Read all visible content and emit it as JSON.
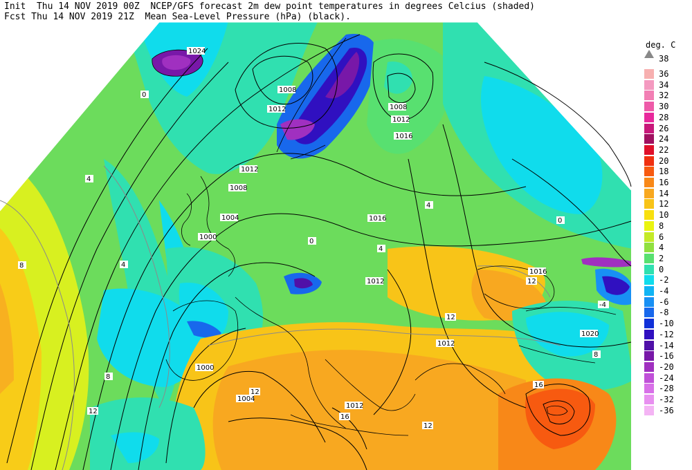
{
  "header": {
    "line1": "Init  Thu 14 NOV 2019 00Z  NCEP/GFS forecast 2m dew point temperatures in degrees Celcius (shaded)",
    "line2": "Fcst Thu 14 NOV 2019 21Z  Mean Sea-Level Pressure (hPa) (black)."
  },
  "legend": {
    "title": "deg. C",
    "top_label": "38",
    "entries": [
      {
        "label": "36",
        "color": "#f7b0b0"
      },
      {
        "label": "34",
        "color": "#f49ac0"
      },
      {
        "label": "32",
        "color": "#f27fb4"
      },
      {
        "label": "30",
        "color": "#ee5aa8"
      },
      {
        "label": "28",
        "color": "#e8289c"
      },
      {
        "label": "26",
        "color": "#c8187a"
      },
      {
        "label": "24",
        "color": "#a01060"
      },
      {
        "label": "22",
        "color": "#e0102a"
      },
      {
        "label": "20",
        "color": "#f03010"
      },
      {
        "label": "18",
        "color": "#f75a10"
      },
      {
        "label": "16",
        "color": "#f88818"
      },
      {
        "label": "14",
        "color": "#f8a820"
      },
      {
        "label": "12",
        "color": "#f8c418"
      },
      {
        "label": "10",
        "color": "#f8e010"
      },
      {
        "label": "8",
        "color": "#eaf410"
      },
      {
        "label": "6",
        "color": "#c4ea28"
      },
      {
        "label": "4",
        "color": "#90e040"
      },
      {
        "label": "2",
        "color": "#58e070"
      },
      {
        "label": "0",
        "color": "#30e0b0"
      },
      {
        "label": "-2",
        "color": "#10dcec"
      },
      {
        "label": "-4",
        "color": "#10b4f4"
      },
      {
        "label": "-6",
        "color": "#1890f4"
      },
      {
        "label": "-8",
        "color": "#1868ec"
      },
      {
        "label": "-10",
        "color": "#1030d8"
      },
      {
        "label": "-12",
        "color": "#3010c0"
      },
      {
        "label": "-14",
        "color": "#5010a8"
      },
      {
        "label": "-16",
        "color": "#7818a8"
      },
      {
        "label": "-20",
        "color": "#a030c0"
      },
      {
        "label": "-24",
        "color": "#c050d8"
      },
      {
        "label": "-28",
        "color": "#d870e8"
      },
      {
        "label": "-32",
        "color": "#e890f0"
      },
      {
        "label": "-36",
        "color": "#f4b4f4"
      }
    ]
  },
  "isobar_labels": [
    {
      "text": "1024"
    },
    {
      "text": "1008"
    },
    {
      "text": "1012"
    },
    {
      "text": "1008"
    },
    {
      "text": "1012"
    },
    {
      "text": "1016"
    },
    {
      "text": "1012"
    },
    {
      "text": "1008"
    },
    {
      "text": "1004"
    },
    {
      "text": "1000"
    },
    {
      "text": "1016"
    },
    {
      "text": "1012"
    },
    {
      "text": "1016"
    },
    {
      "text": "1020"
    },
    {
      "text": "1012"
    },
    {
      "text": "1000"
    },
    {
      "text": "1004"
    },
    {
      "text": "1012"
    },
    {
      "text": "1012"
    }
  ],
  "dew_labels": [
    {
      "text": "0"
    },
    {
      "text": "4"
    },
    {
      "text": "8"
    },
    {
      "text": "4"
    },
    {
      "text": "0"
    },
    {
      "text": "4"
    },
    {
      "text": "8"
    },
    {
      "text": "12"
    },
    {
      "text": "12"
    },
    {
      "text": "16"
    },
    {
      "text": "12"
    },
    {
      "text": "12"
    },
    {
      "text": "8"
    },
    {
      "text": "4"
    },
    {
      "text": "0"
    },
    {
      "text": "-4"
    },
    {
      "text": "16"
    },
    {
      "text": "12"
    }
  ]
}
